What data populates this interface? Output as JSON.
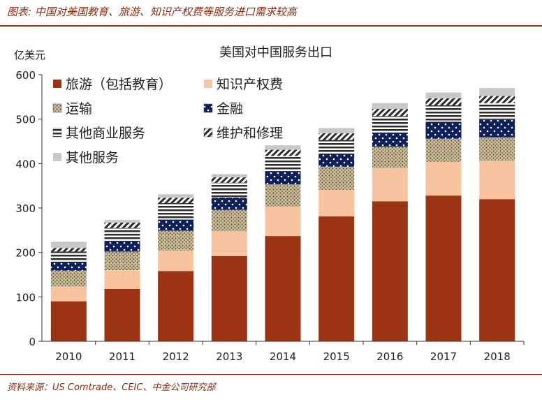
{
  "header": {
    "caption": "图表: 中国对美国教育、旅游、知识产权费等服务进口需求较高"
  },
  "footer": {
    "source": "资料来源：US Comtrade、CEIC、中金公司研究部"
  },
  "chart_data": {
    "type": "bar",
    "stacked": true,
    "title": "美国对中国服务出口",
    "ylabel": "亿美元",
    "xlabel": "",
    "ylim": [
      0,
      600
    ],
    "yticks": [
      0,
      100,
      200,
      300,
      400,
      500,
      600
    ],
    "categories": [
      "2010",
      "2011",
      "2012",
      "2013",
      "2014",
      "2015",
      "2016",
      "2017",
      "2018"
    ],
    "legend_position": "top-left",
    "series": [
      {
        "name": "旅游（包括教育）",
        "color": "#9b3413",
        "pattern": "solid",
        "values": [
          90,
          118,
          158,
          192,
          237,
          281,
          315,
          328,
          320
        ]
      },
      {
        "name": "知识产权费",
        "color": "#f7c49f",
        "pattern": "solid",
        "values": [
          33,
          42,
          46,
          56,
          66,
          60,
          75,
          76,
          86
        ]
      },
      {
        "name": "运输",
        "color": "#c4b89a",
        "pattern": "dots",
        "values": [
          36,
          42,
          45,
          48,
          50,
          52,
          48,
          52,
          53
        ]
      },
      {
        "name": "金融",
        "color": "#0d1f5c",
        "pattern": "white-dots",
        "values": [
          20,
          24,
          25,
          27,
          30,
          28,
          32,
          38,
          40
        ]
      },
      {
        "name": "其他商业服务",
        "color": "#2b2b2b",
        "pattern": "horizontal-stripes",
        "values": [
          23,
          29,
          37,
          34,
          34,
          32,
          37,
          37,
          37
        ]
      },
      {
        "name": "维护和修理",
        "color": "#2b2b2b",
        "pattern": "diagonal-stripes",
        "values": [
          8,
          12,
          12,
          12,
          14,
          15,
          16,
          16,
          16
        ]
      },
      {
        "name": "其他服务",
        "color": "#c8c8c8",
        "pattern": "solid",
        "values": [
          14,
          6,
          8,
          7,
          10,
          12,
          13,
          13,
          18
        ]
      }
    ]
  }
}
